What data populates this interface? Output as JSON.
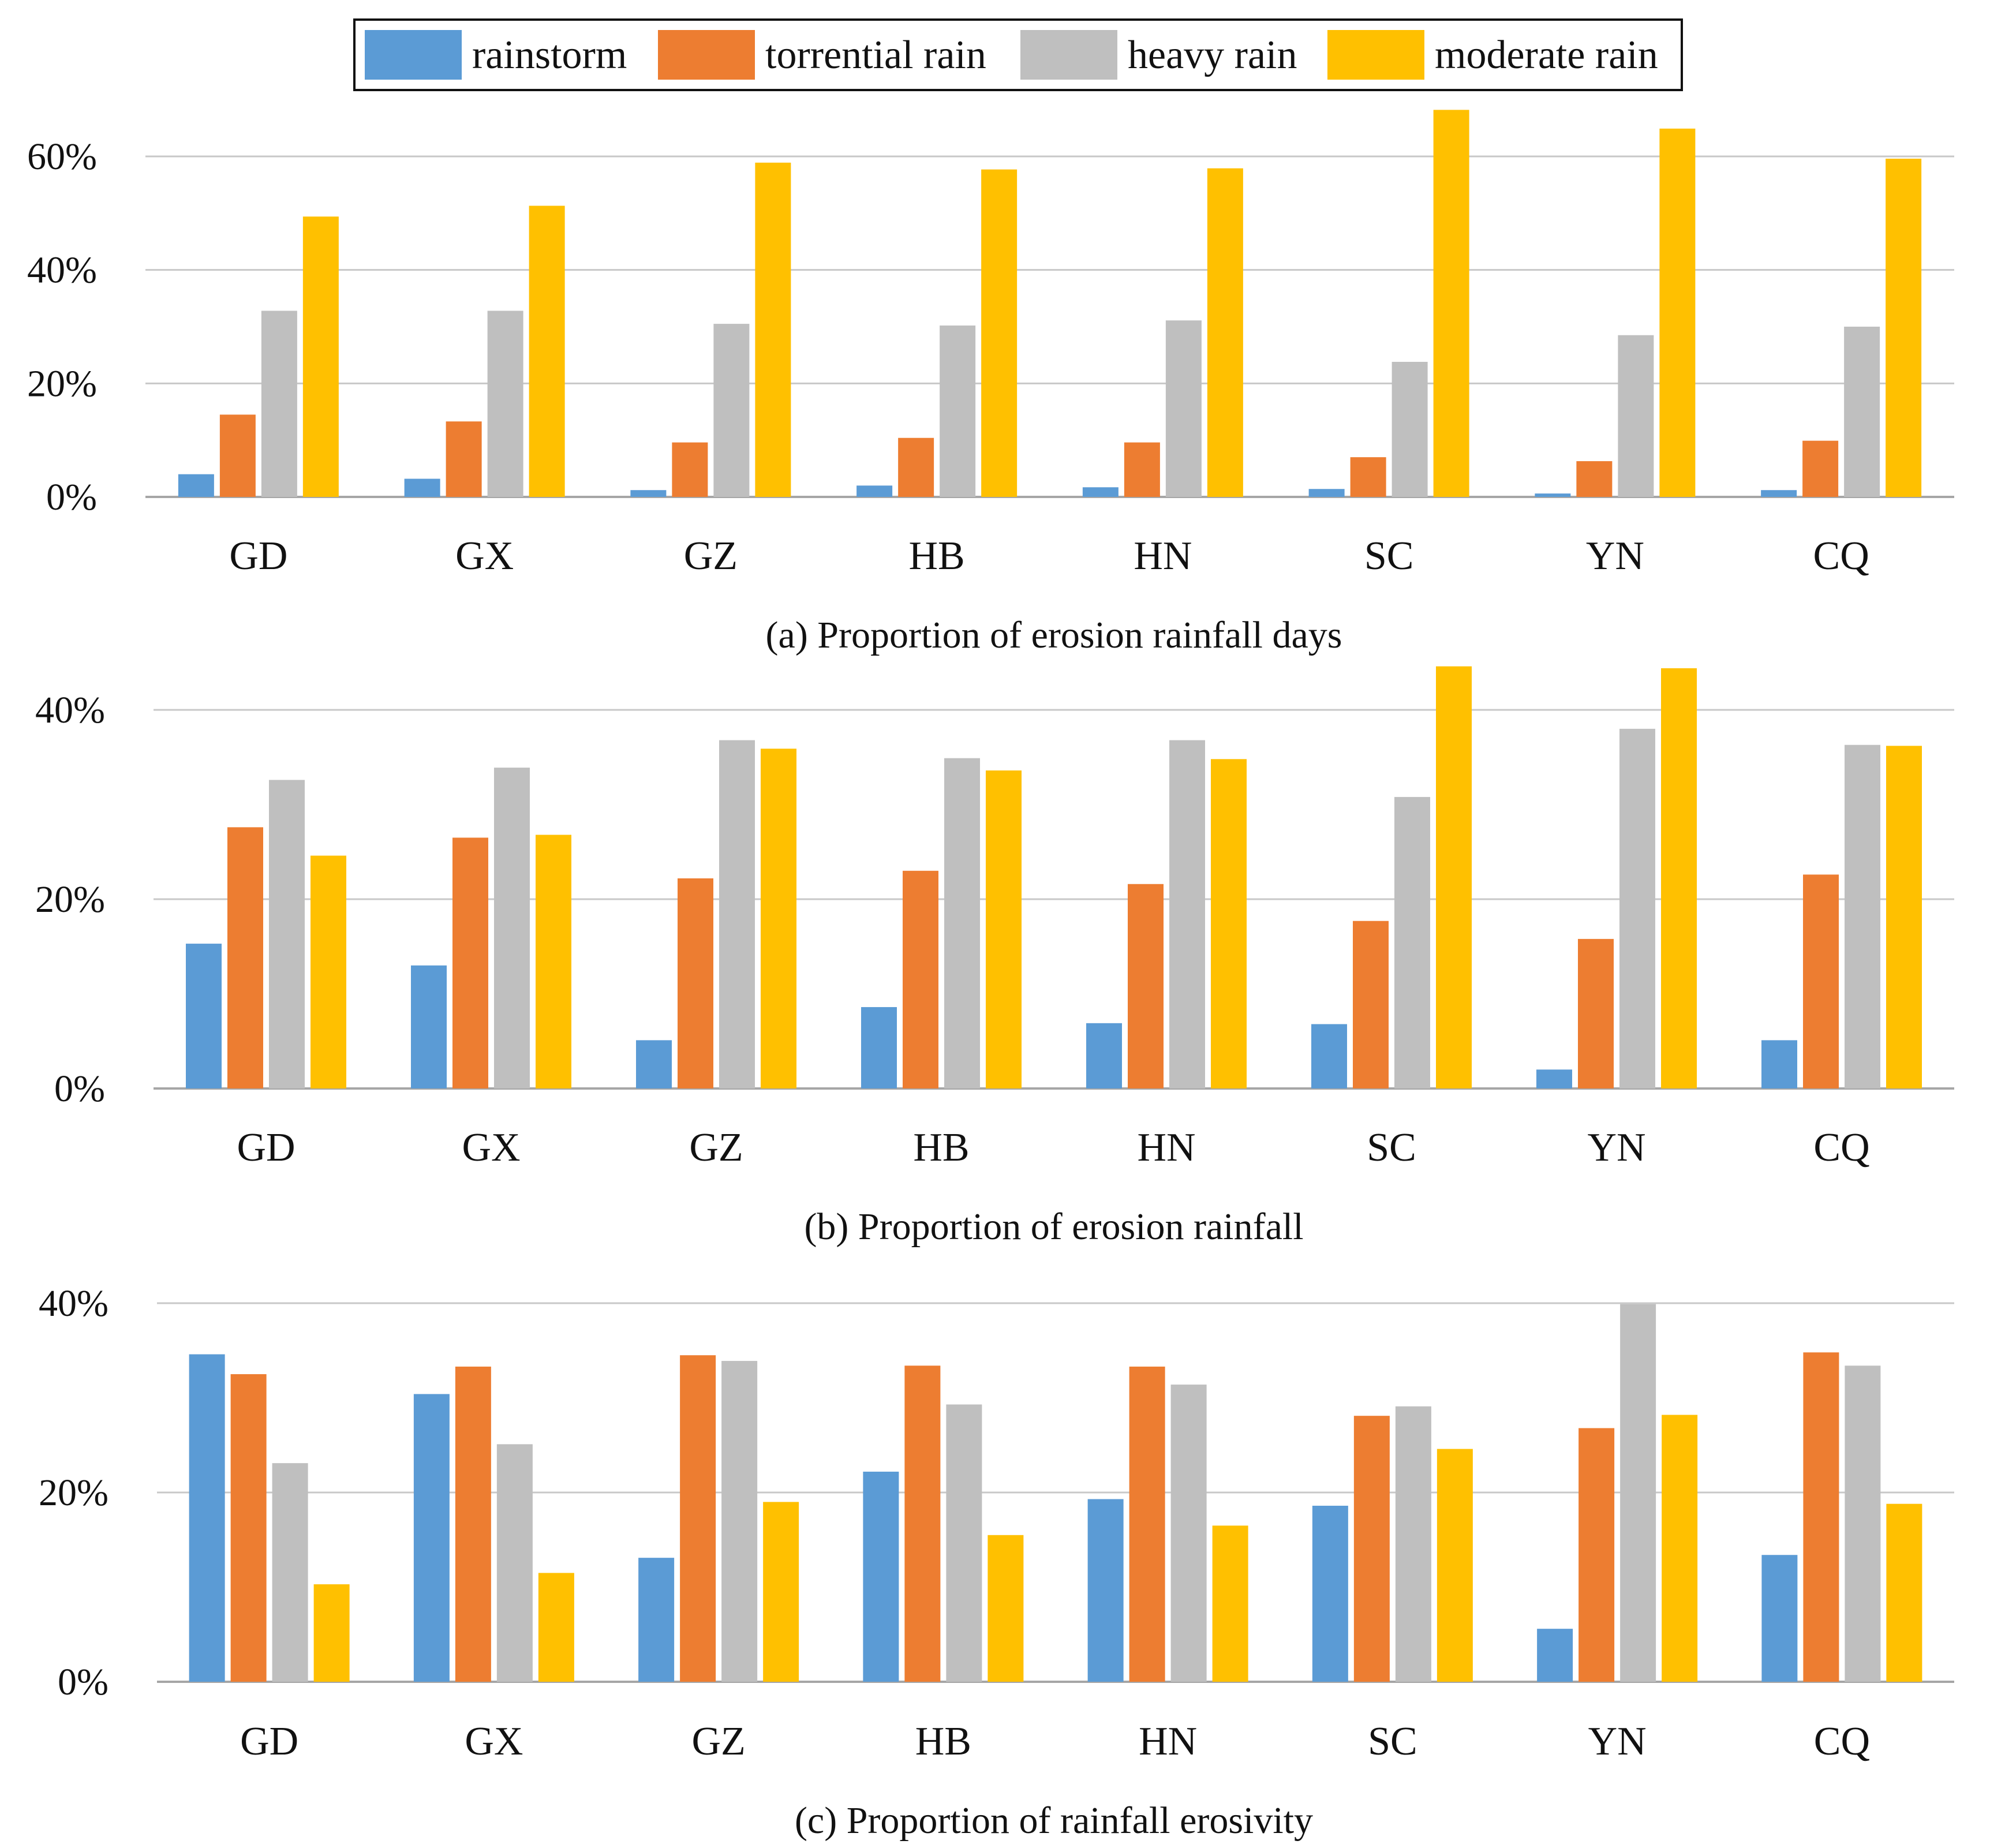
{
  "legend": {
    "position": "top-center",
    "entries": [
      {
        "name": "rainstorm",
        "color": "#5B9BD5"
      },
      {
        "name": "torrential rain",
        "color": "#ED7D31"
      },
      {
        "name": "heavy rain",
        "color": "#BFBFBF"
      },
      {
        "name": "moderate rain",
        "color": "#FFC000"
      }
    ]
  },
  "chart_data": [
    {
      "type": "bar",
      "title": "(a) Proportion of erosion rainfall days",
      "categories": [
        "GD",
        "GX",
        "GZ",
        "HB",
        "HN",
        "SC",
        "YN",
        "CQ"
      ],
      "ylim": [
        0,
        60
      ],
      "yticks": [
        "0%",
        "20%",
        "40%",
        "60%"
      ],
      "grid": true,
      "series": [
        {
          "name": "rainstorm",
          "values": [
            4.0,
            3.2,
            1.2,
            2.0,
            1.7,
            1.4,
            0.6,
            1.2
          ]
        },
        {
          "name": "torrential rain",
          "values": [
            14.5,
            13.3,
            9.6,
            10.4,
            9.6,
            7.0,
            6.3,
            9.9
          ]
        },
        {
          "name": "heavy rain",
          "values": [
            32.8,
            32.8,
            30.5,
            30.2,
            31.1,
            23.8,
            28.5,
            30.0
          ]
        },
        {
          "name": "moderate rain",
          "values": [
            49.4,
            51.3,
            58.9,
            57.7,
            57.9,
            68.2,
            64.9,
            59.6
          ]
        }
      ]
    },
    {
      "type": "bar",
      "title": "(b) Proportion of erosion rainfall",
      "categories": [
        "GD",
        "GX",
        "GZ",
        "HB",
        "HN",
        "SC",
        "YN",
        "CQ"
      ],
      "ylim": [
        0,
        40
      ],
      "yticks": [
        "0%",
        "20%",
        "40%"
      ],
      "grid": true,
      "series": [
        {
          "name": "rainstorm",
          "values": [
            15.3,
            13.0,
            5.1,
            8.6,
            6.9,
            6.8,
            2.0,
            5.1
          ]
        },
        {
          "name": "torrential rain",
          "values": [
            27.6,
            26.5,
            22.2,
            23.0,
            21.6,
            17.7,
            15.8,
            22.6
          ]
        },
        {
          "name": "heavy rain",
          "values": [
            32.6,
            33.9,
            36.8,
            34.9,
            36.8,
            30.8,
            38.0,
            36.3
          ]
        },
        {
          "name": "moderate rain",
          "values": [
            24.6,
            26.8,
            35.9,
            33.6,
            34.8,
            44.6,
            44.4,
            36.2
          ]
        }
      ]
    },
    {
      "type": "bar",
      "title": "(c) Proportion of rainfall erosivity",
      "categories": [
        "GD",
        "GX",
        "GZ",
        "HB",
        "HN",
        "SC",
        "YN",
        "CQ"
      ],
      "ylim": [
        0,
        40
      ],
      "yticks": [
        "0%",
        "20%",
        "40%"
      ],
      "grid": true,
      "series": [
        {
          "name": "rainstorm",
          "values": [
            34.6,
            30.4,
            13.1,
            22.2,
            19.3,
            18.6,
            5.6,
            13.4
          ]
        },
        {
          "name": "torrential rain",
          "values": [
            32.5,
            33.3,
            34.5,
            33.4,
            33.3,
            28.1,
            26.8,
            34.8
          ]
        },
        {
          "name": "heavy rain",
          "values": [
            23.1,
            25.1,
            33.9,
            29.3,
            31.4,
            29.1,
            39.9,
            33.4
          ]
        },
        {
          "name": "moderate rain",
          "values": [
            10.3,
            11.5,
            19.0,
            15.5,
            16.5,
            24.6,
            28.2,
            18.8
          ]
        }
      ]
    }
  ]
}
